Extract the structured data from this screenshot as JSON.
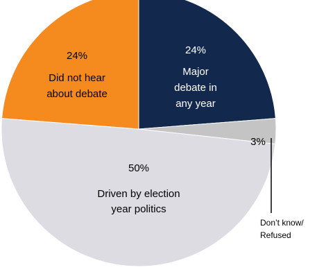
{
  "chart_data": {
    "type": "pie",
    "slices": [
      {
        "label_lines": [
          "Major",
          "debate in",
          "any year"
        ],
        "value": 24,
        "value_label": "24%",
        "color": "#13284d",
        "text_color": "#ffffff"
      },
      {
        "label_lines": [
          "Don’t know/",
          "Refused"
        ],
        "value": 3,
        "value_label": "3%",
        "color": "#c4c4c4",
        "text_color": "#000000"
      },
      {
        "label_lines": [
          "Driven by election",
          "year politics"
        ],
        "value": 50,
        "value_label": "50%",
        "color": "#dcdce2",
        "text_color": "#000000"
      },
      {
        "label_lines": [
          "Did not hear",
          "about debate"
        ],
        "value": 24,
        "value_label": "24%",
        "color": "#f58a1f",
        "text_color": "#000000"
      }
    ]
  }
}
